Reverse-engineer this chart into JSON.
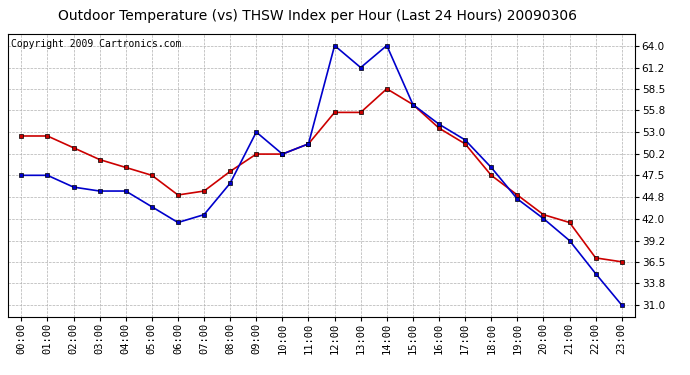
{
  "title": "Outdoor Temperature (vs) THSW Index per Hour (Last 24 Hours) 20090306",
  "copyright": "Copyright 2009 Cartronics.com",
  "hours": [
    "00:00",
    "01:00",
    "02:00",
    "03:00",
    "04:00",
    "05:00",
    "06:00",
    "07:00",
    "08:00",
    "09:00",
    "10:00",
    "11:00",
    "12:00",
    "13:00",
    "14:00",
    "15:00",
    "16:00",
    "17:00",
    "18:00",
    "19:00",
    "20:00",
    "21:00",
    "22:00",
    "23:00"
  ],
  "temp": [
    52.5,
    52.5,
    51.0,
    49.5,
    48.5,
    47.5,
    45.0,
    45.5,
    48.0,
    50.2,
    50.2,
    51.5,
    55.5,
    55.5,
    58.5,
    56.5,
    53.5,
    51.5,
    47.5,
    45.0,
    42.5,
    41.5,
    37.0,
    36.5
  ],
  "thsw": [
    47.5,
    47.5,
    46.0,
    45.5,
    45.5,
    43.5,
    41.5,
    42.5,
    46.5,
    53.0,
    50.2,
    51.5,
    64.0,
    61.2,
    64.0,
    56.5,
    54.0,
    52.0,
    48.5,
    44.5,
    42.0,
    39.2,
    35.0,
    31.0
  ],
  "ylim": [
    29.5,
    65.5
  ],
  "yticks": [
    31.0,
    33.8,
    36.5,
    39.2,
    42.0,
    44.8,
    47.5,
    50.2,
    53.0,
    55.8,
    58.5,
    61.2,
    64.0
  ],
  "temp_color": "#cc0000",
  "thsw_color": "#0000cc",
  "bg_color": "#ffffff",
  "grid_color": "#b0b0b0",
  "title_fontsize": 10,
  "copyright_fontsize": 7,
  "tick_fontsize": 7.5
}
